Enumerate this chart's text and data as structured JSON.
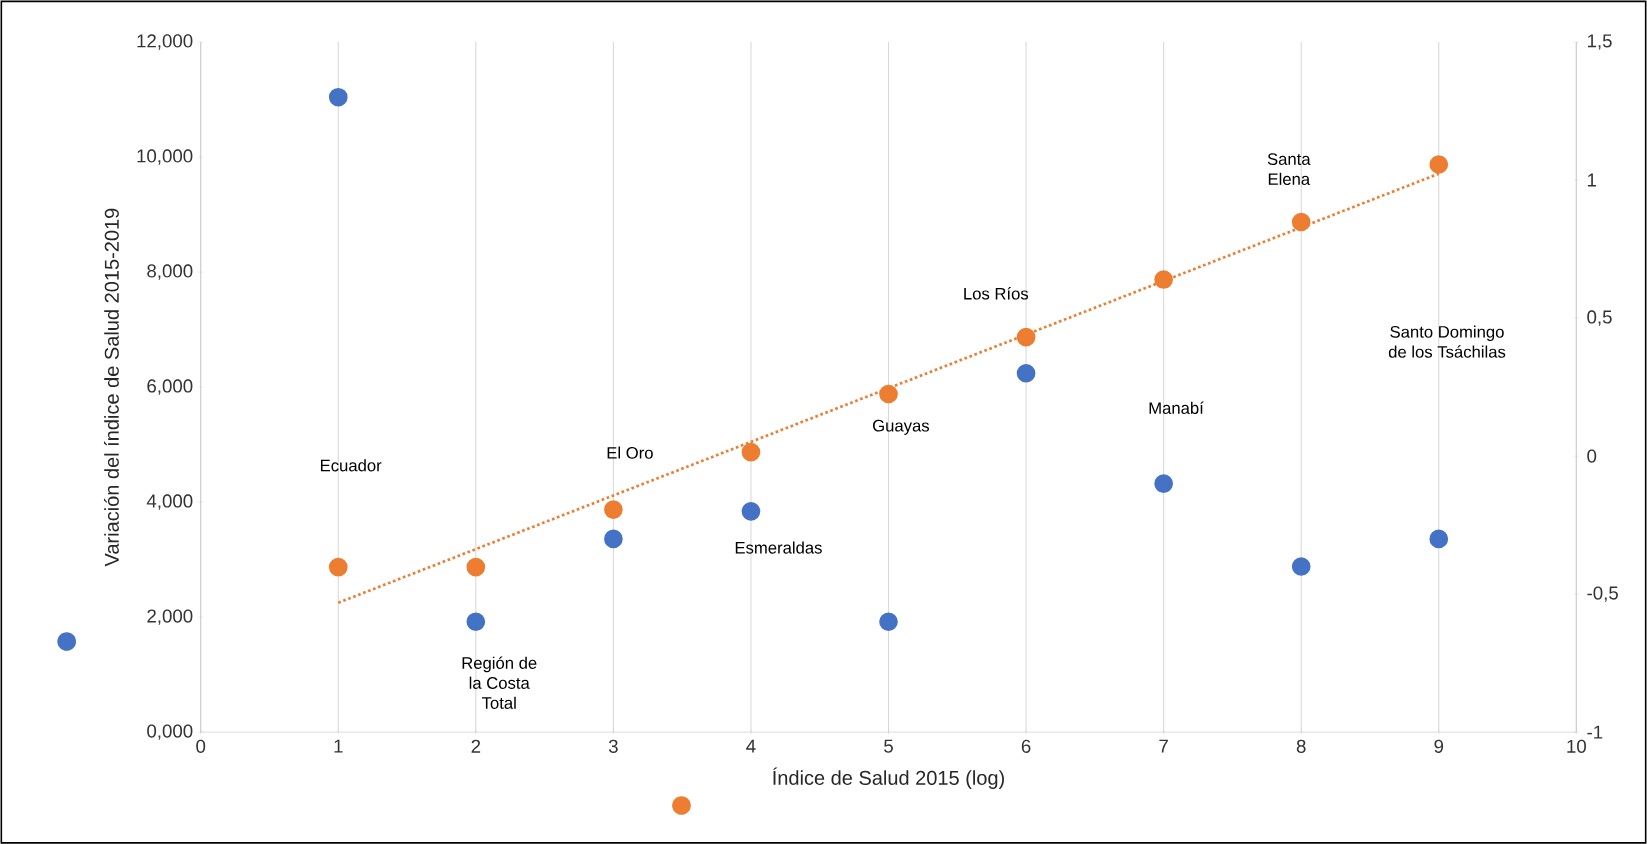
{
  "chart_data": {
    "type": "scatter",
    "xlabel": "Índice de Salud 2015 (log)",
    "ylabel": "Variación del índice de Salud  2015-2019",
    "x": [
      1,
      2,
      3,
      4,
      5,
      6,
      7,
      8,
      9
    ],
    "xlim": [
      0,
      10
    ],
    "xticks": [
      0,
      1,
      2,
      3,
      4,
      5,
      6,
      7,
      8,
      9,
      10
    ],
    "ylim": [
      0,
      12
    ],
    "yticks": [
      {
        "value": 0,
        "label": "0,000"
      },
      {
        "value": 2,
        "label": "2,000"
      },
      {
        "value": 4,
        "label": "4,000"
      },
      {
        "value": 6,
        "label": "6,000"
      },
      {
        "value": 8,
        "label": "8,000"
      },
      {
        "value": 10,
        "label": "10,000"
      },
      {
        "value": 12,
        "label": "12,000"
      }
    ],
    "y2lim": [
      -1,
      1.5
    ],
    "y2ticks": [
      -1,
      {
        "value": -0.5,
        "label": "-0,5"
      },
      0,
      {
        "value": 0.5,
        "label": "0,5"
      },
      1,
      {
        "value": 1.5,
        "label": "1,5"
      }
    ],
    "series": [
      {
        "color": "#4472c4",
        "axis": "y2",
        "marker": "circle",
        "values": [
          1.3,
          -0.6,
          -0.3,
          -0.2,
          -0.6,
          0.3,
          -0.1,
          -0.4,
          -0.3
        ]
      },
      {
        "color": "#ed7d31",
        "marker": "circle",
        "values": [
          2.87,
          2.87,
          3.87,
          4.87,
          5.88,
          6.87,
          7.87,
          8.87,
          9.87
        ]
      },
      {
        "type": "line",
        "color": "#ed7d31",
        "x": [
          1,
          9
        ],
        "values": [
          2.25,
          9.71
        ],
        "line_style": "dotted",
        "marker": "none"
      }
    ],
    "grid": "x",
    "annotations": [
      "Ecuador",
      "Región de la Costa Total",
      "El Oro",
      "Esmeraldas",
      "Guayas",
      "Los Ríos",
      "Manabí",
      "Santa Elena",
      "Santo Domingo de los Tsáchilas"
    ]
  }
}
